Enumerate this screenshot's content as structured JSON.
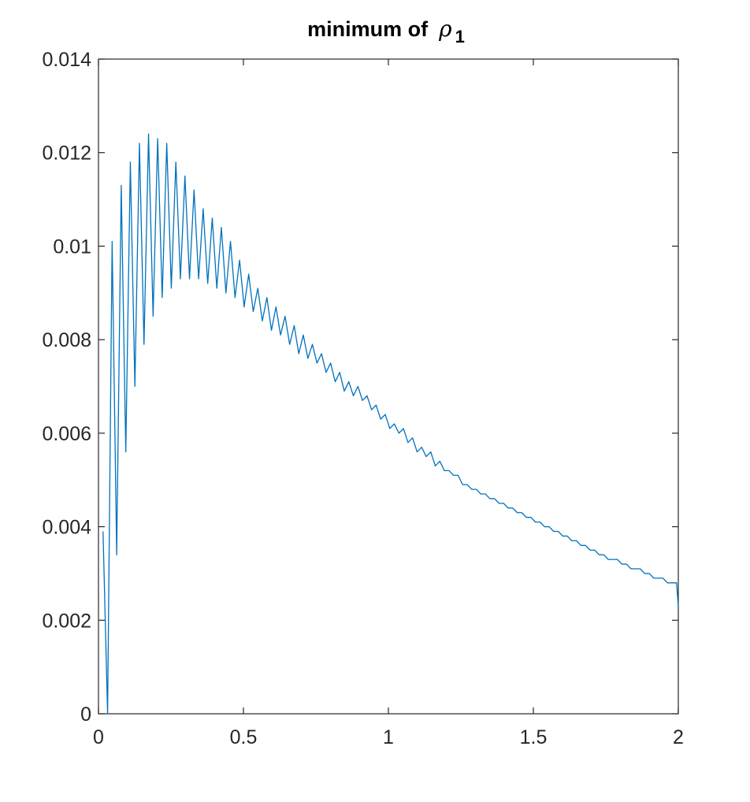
{
  "chart_data": {
    "type": "line",
    "title": {
      "text": "minimum of",
      "symbol": "ρ",
      "subscript": "1"
    },
    "xlabel": "",
    "ylabel": "",
    "xlim": [
      0,
      2
    ],
    "ylim": [
      0,
      0.014
    ],
    "grid": false,
    "box": true,
    "xticks": [
      0,
      0.5,
      1,
      1.5,
      2
    ],
    "xtick_labels": [
      "0",
      "0.5",
      "1",
      "1.5",
      "2"
    ],
    "yticks": [
      0,
      0.002,
      0.004,
      0.006,
      0.008,
      0.01,
      0.012,
      0.014
    ],
    "ytick_labels": [
      "0",
      "0.002",
      "0.004",
      "0.006",
      "0.008",
      "0.01",
      "0.012",
      "0.014"
    ],
    "line_color": "#0072BD",
    "axis_color": "#262626",
    "series": [
      {
        "x": [
          0.0157,
          0.0314,
          0.0471,
          0.0628,
          0.0785,
          0.0942,
          0.1099,
          0.1256,
          0.1413,
          0.157,
          0.1727,
          0.1884,
          0.2041,
          0.2198,
          0.2355,
          0.2512,
          0.2669,
          0.2826,
          0.2983,
          0.314,
          0.3297,
          0.3454,
          0.3611,
          0.3768,
          0.3925,
          0.4082,
          0.4239,
          0.4396,
          0.4553,
          0.471,
          0.4867,
          0.5024,
          0.5181,
          0.5338,
          0.5495,
          0.5652,
          0.5809,
          0.5966,
          0.6123,
          0.628,
          0.6437,
          0.6594,
          0.6751,
          0.6908,
          0.7065,
          0.7222,
          0.7379,
          0.7536,
          0.7693,
          0.785,
          0.8007,
          0.8164,
          0.8321,
          0.8478,
          0.8635,
          0.8792,
          0.8949,
          0.9106,
          0.9263,
          0.942,
          0.9577,
          0.9734,
          0.9891,
          1.0048,
          1.0205,
          1.0362,
          1.0519,
          1.0676,
          1.0833,
          1.099,
          1.1147,
          1.1304,
          1.1461,
          1.1618,
          1.1775,
          1.1932,
          1.2089,
          1.2246,
          1.2403,
          1.256,
          1.2717,
          1.2874,
          1.3031,
          1.3188,
          1.3345,
          1.3502,
          1.3659,
          1.3816,
          1.3973,
          1.413,
          1.4287,
          1.4444,
          1.4601,
          1.4758,
          1.4915,
          1.5072,
          1.5229,
          1.5386,
          1.5543,
          1.57,
          1.5857,
          1.6014,
          1.6171,
          1.6328,
          1.6485,
          1.6642,
          1.6799,
          1.6956,
          1.7113,
          1.727,
          1.7427,
          1.7584,
          1.7741,
          1.7898,
          1.8055,
          1.8212,
          1.8369,
          1.8526,
          1.8683,
          1.884,
          1.8997,
          1.9154,
          1.9311,
          1.9468,
          1.9625,
          1.9782,
          1.9939,
          2.0
        ],
        "values": [
          0.0039,
          0.0,
          0.0101,
          0.0034,
          0.0113,
          0.0056,
          0.0118,
          0.007,
          0.0122,
          0.0079,
          0.0124,
          0.0085,
          0.0123,
          0.0089,
          0.0122,
          0.0091,
          0.0118,
          0.0093,
          0.0115,
          0.0093,
          0.0112,
          0.0093,
          0.0108,
          0.0092,
          0.0106,
          0.0091,
          0.0104,
          0.009,
          0.0101,
          0.0089,
          0.0097,
          0.0087,
          0.0094,
          0.0086,
          0.0091,
          0.0084,
          0.0089,
          0.0082,
          0.0087,
          0.0081,
          0.0085,
          0.0079,
          0.0083,
          0.0077,
          0.0081,
          0.0076,
          0.0079,
          0.0075,
          0.0077,
          0.0073,
          0.0075,
          0.0071,
          0.0073,
          0.0069,
          0.0071,
          0.0068,
          0.007,
          0.0067,
          0.0068,
          0.0065,
          0.0066,
          0.0063,
          0.0064,
          0.0061,
          0.0062,
          0.006,
          0.0061,
          0.0058,
          0.0059,
          0.0056,
          0.0057,
          0.0055,
          0.0056,
          0.0053,
          0.0054,
          0.0052,
          0.0052,
          0.0051,
          0.0051,
          0.0049,
          0.0049,
          0.0048,
          0.0048,
          0.0047,
          0.0047,
          0.0046,
          0.0046,
          0.0045,
          0.0045,
          0.0044,
          0.0044,
          0.0043,
          0.0043,
          0.0042,
          0.0042,
          0.0041,
          0.0041,
          0.004,
          0.004,
          0.0039,
          0.0039,
          0.0038,
          0.0038,
          0.0037,
          0.0037,
          0.0036,
          0.0036,
          0.0035,
          0.0035,
          0.0034,
          0.0034,
          0.0033,
          0.0033,
          0.0033,
          0.0032,
          0.0032,
          0.0031,
          0.0031,
          0.0031,
          0.003,
          0.003,
          0.0029,
          0.0029,
          0.0029,
          0.0028,
          0.0028,
          0.0028,
          0.0023
        ]
      }
    ]
  }
}
